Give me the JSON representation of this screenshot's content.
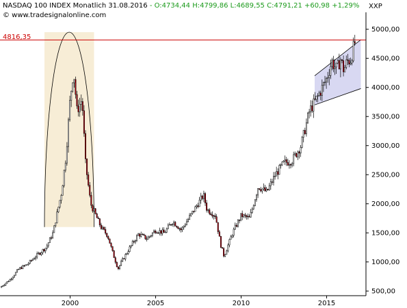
{
  "header": {
    "instrument": "NASDAQ 100 INDEX Monatlich",
    "date": "31.08.2016",
    "ohlc": "- O:4734,44 H:4799,86 L:4689,55",
    "change": "C:4791,21 +60,98 +1,29%",
    "website": "© www.tradesignalonline.com",
    "symbol": "XXP"
  },
  "reference_line": {
    "label": "4816,35",
    "value": 4816.35,
    "color": "#cc0000"
  },
  "colors": {
    "up": "#ffffff",
    "down": "#b0000e",
    "wick": "#000000",
    "ellipse_fill": "#f7edd6",
    "channel_fill": "#d8d8f2"
  },
  "chart_data": {
    "type": "candlestick",
    "title": "NASDAQ 100 INDEX Monatlich",
    "ylim": [
      420,
      5150
    ],
    "y_ticks": [
      500,
      1000,
      1500,
      2000,
      2500,
      3000,
      3500,
      4000,
      4500,
      5000
    ],
    "y_tick_labels": [
      "500,00",
      "1000,00",
      "1500,00",
      "2000,00",
      "2500,00",
      "3000,00",
      "3500,00",
      "4000,00",
      "4500,00",
      "5000,00"
    ],
    "x_range": [
      1995.9,
      2017.3
    ],
    "x_ticks": [
      2000,
      2005,
      2010,
      2015
    ],
    "x_tick_labels": [
      "2000",
      "2005",
      "2010",
      "2015"
    ],
    "path_points": [
      [
        1995.9,
        560
      ],
      [
        1996.5,
        700
      ],
      [
        1997.0,
        880
      ],
      [
        1997.5,
        960
      ],
      [
        1998.0,
        1100
      ],
      [
        1998.6,
        1250
      ],
      [
        1999.0,
        1500
      ],
      [
        1999.5,
        2200
      ],
      [
        1999.75,
        2800
      ],
      [
        2000.0,
        3800
      ],
      [
        2000.2,
        4300
      ],
      [
        2000.4,
        3600
      ],
      [
        2000.7,
        3800
      ],
      [
        2000.9,
        2700
      ],
      [
        2001.2,
        2000
      ],
      [
        2001.5,
        1800
      ],
      [
        2001.8,
        1600
      ],
      [
        2002.2,
        1450
      ],
      [
        2002.5,
        1150
      ],
      [
        2002.8,
        880
      ],
      [
        2003.0,
        1000
      ],
      [
        2003.5,
        1250
      ],
      [
        2004.0,
        1480
      ],
      [
        2004.5,
        1400
      ],
      [
        2005.0,
        1550
      ],
      [
        2005.5,
        1500
      ],
      [
        2006.0,
        1700
      ],
      [
        2006.5,
        1550
      ],
      [
        2007.0,
        1780
      ],
      [
        2007.8,
        2150
      ],
      [
        2008.0,
        1900
      ],
      [
        2008.5,
        1800
      ],
      [
        2008.8,
        1300
      ],
      [
        2009.0,
        1100
      ],
      [
        2009.5,
        1500
      ],
      [
        2010.0,
        1800
      ],
      [
        2010.5,
        1750
      ],
      [
        2011.0,
        2300
      ],
      [
        2011.5,
        2200
      ],
      [
        2012.0,
        2500
      ],
      [
        2012.5,
        2700
      ],
      [
        2013.0,
        2750
      ],
      [
        2013.5,
        3000
      ],
      [
        2014.0,
        3600
      ],
      [
        2014.5,
        3850
      ],
      [
        2015.0,
        4150
      ],
      [
        2015.3,
        4450
      ],
      [
        2015.6,
        4300
      ],
      [
        2015.8,
        4500
      ],
      [
        2016.0,
        4300
      ],
      [
        2016.2,
        4450
      ],
      [
        2016.4,
        4480
      ],
      [
        2016.67,
        4791
      ]
    ],
    "annotations": {
      "ellipse": {
        "x_from": 1998.5,
        "x_to": 2001.4,
        "y_from": 1600,
        "y_to": 4950
      },
      "channel": {
        "x_from": 2014.3,
        "x_to": 2017.0,
        "upper": [
          4200,
          4820
        ],
        "lower": [
          3700,
          3980
        ]
      }
    }
  }
}
